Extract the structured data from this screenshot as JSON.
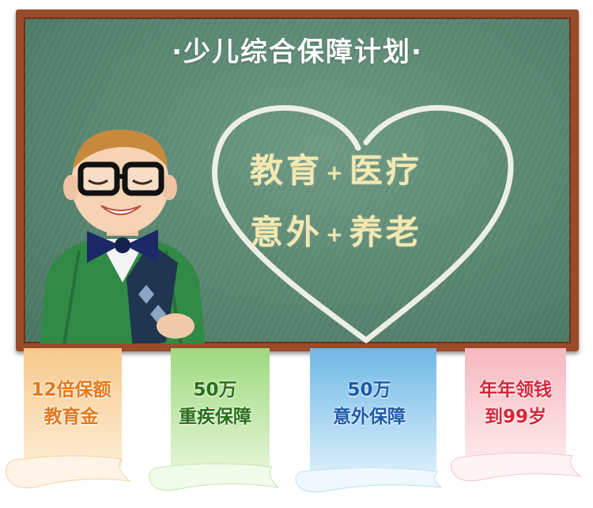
{
  "board": {
    "title": "·少儿综合保障计划·",
    "line1": {
      "left": "教育",
      "plus": "+",
      "right": "医疗"
    },
    "line2": {
      "left": "意外",
      "plus": "+",
      "right": "养老"
    }
  },
  "banners": [
    {
      "line1": "12倍保额",
      "line2": "教育金",
      "color": "#e2791e"
    },
    {
      "line1": "50万",
      "line2": "重疾保障",
      "color": "#2a6e1a"
    },
    {
      "line1": "50万",
      "line2": "意外保障",
      "color": "#1e5aa8"
    },
    {
      "line1": "年年领钱",
      "line2": "到99岁",
      "color": "#d2283a"
    }
  ]
}
